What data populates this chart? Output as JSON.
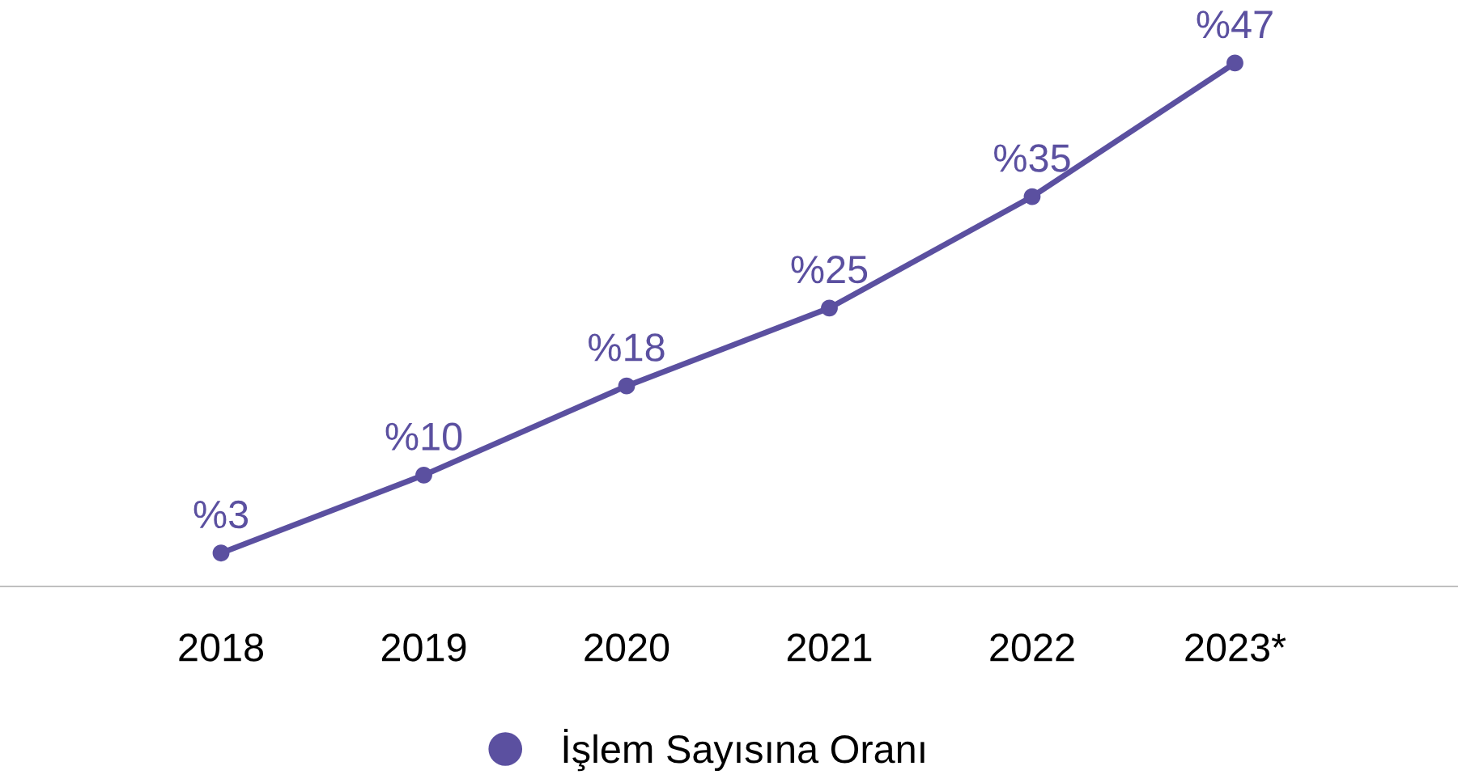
{
  "chart_data": {
    "type": "line",
    "categories": [
      "2018",
      "2019",
      "2020",
      "2021",
      "2022",
      "2023*"
    ],
    "series": [
      {
        "name": "İşlem Sayısına Oranı",
        "color": "#5b50a0",
        "values": [
          3,
          10,
          18,
          25,
          35,
          47
        ],
        "value_labels": [
          "%3",
          "%10",
          "%18",
          "%25",
          "%35",
          "%47"
        ]
      }
    ],
    "tick_labels": "x",
    "legend": "bottom",
    "marker": "circle",
    "line_style": "solid",
    "grid": false
  }
}
